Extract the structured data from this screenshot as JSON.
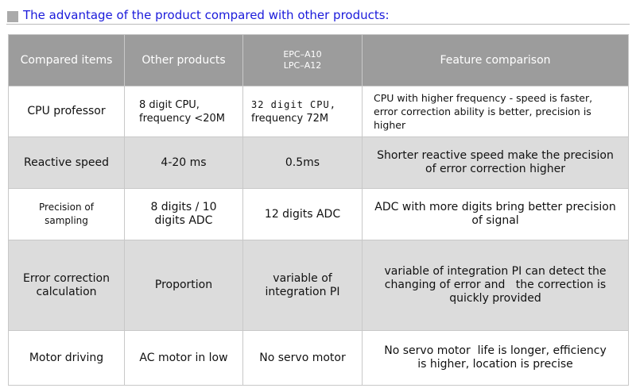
{
  "title": "The advantage of the product compared with other products:",
  "headers": {
    "item": "Compared items",
    "other": "Other products",
    "model_line1": "EPC–A10",
    "model_line2": "LPC–A12",
    "feature": "Feature comparison"
  },
  "rows": [
    {
      "item": "CPU professor",
      "other_line1": "8 digit CPU,",
      "other_line2": "frequency <20M",
      "ours_line1": "32 digit CPU,",
      "ours_line2": "frequency 72M",
      "feature_line1": "CPU with higher frequency - speed is faster,",
      "feature_line2": "error correction ability is better, precision is higher"
    },
    {
      "item": "Reactive speed",
      "other": "4-20 ms",
      "ours": "0.5ms",
      "feature": "Shorter reactive speed make the precision of error correction higher"
    },
    {
      "item": "Precision of sampling",
      "other": "8 digits / 10 digits ADC",
      "ours": "12 digits ADC",
      "feature": "ADC with more digits bring better precision of signal"
    },
    {
      "item": "Error correction calculation",
      "other": "Proportion",
      "ours": "variable of integration PI",
      "feature": "variable of integration PI can detect the changing of error and   the correction is quickly provided"
    },
    {
      "item": "Motor driving",
      "other": "AC motor in low",
      "ours": "No servo motor",
      "feature": "No servo motor  life is longer, efficiency is higher, location is precise"
    }
  ]
}
